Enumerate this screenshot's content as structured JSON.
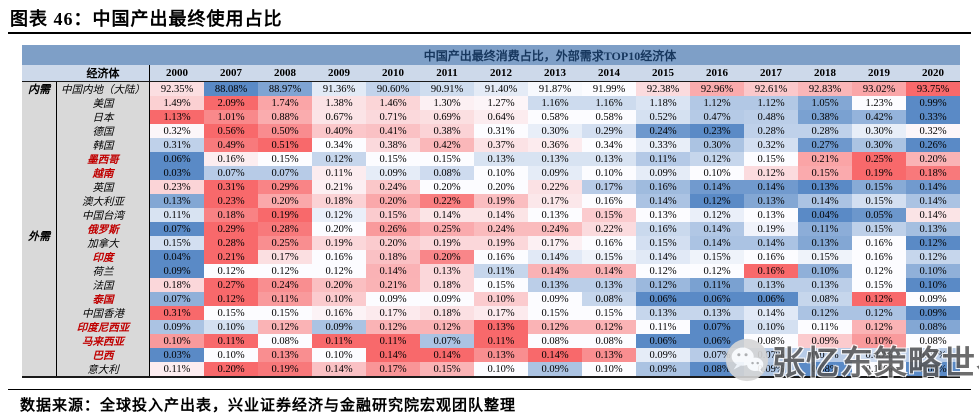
{
  "page": {
    "title": "图表 46：中国产出最终使用占比",
    "source": "数据来源：全球投入产出表，兴业证券经济与金融研究院宏观团队整理",
    "watermark_text": "张忆东策略世界",
    "watermark_icon": "wechat-icon"
  },
  "chart_data": {
    "type": "heatmap",
    "title": "中国产出最终消费占比，外部需求TOP10经济体",
    "economy_header": "经济体",
    "columns": [
      "2000",
      "2007",
      "2008",
      "2009",
      "2010",
      "2011",
      "2012",
      "2013",
      "2014",
      "2015",
      "2016",
      "2017",
      "2018",
      "2019",
      "2020"
    ],
    "groups": [
      {
        "label": "内需",
        "row_span": 1
      },
      {
        "label": "外需",
        "row_span": 20
      }
    ],
    "value_unit": "percent",
    "colorscale": {
      "low": "#5A8AC6",
      "mid": "#FCFCFF",
      "high": "#F8696B",
      "normalization": "per-row min/median/max"
    },
    "highlight_color": "#C00000",
    "rows": [
      {
        "name": "中国内地（大陆）",
        "highlight": false,
        "values": [
          92.35,
          88.08,
          88.97,
          91.36,
          90.6,
          90.91,
          91.4,
          91.87,
          91.99,
          92.38,
          92.96,
          92.61,
          92.83,
          93.02,
          93.75
        ]
      },
      {
        "name": "美国",
        "highlight": false,
        "values": [
          1.49,
          2.09,
          1.74,
          1.38,
          1.46,
          1.3,
          1.27,
          1.16,
          1.16,
          1.18,
          1.12,
          1.12,
          1.05,
          1.23,
          0.99
        ]
      },
      {
        "name": "日本",
        "highlight": false,
        "values": [
          1.13,
          1.01,
          0.88,
          0.67,
          0.71,
          0.69,
          0.64,
          0.58,
          0.58,
          0.52,
          0.47,
          0.48,
          0.38,
          0.42,
          0.33
        ]
      },
      {
        "name": "德国",
        "highlight": false,
        "values": [
          0.32,
          0.56,
          0.5,
          0.4,
          0.41,
          0.38,
          0.31,
          0.3,
          0.29,
          0.24,
          0.23,
          0.28,
          0.28,
          0.3,
          0.32
        ]
      },
      {
        "name": "韩国",
        "highlight": false,
        "values": [
          0.31,
          0.49,
          0.51,
          0.34,
          0.38,
          0.42,
          0.37,
          0.36,
          0.34,
          0.33,
          0.3,
          0.32,
          0.27,
          0.3,
          0.26
        ]
      },
      {
        "name": "墨西哥",
        "highlight": true,
        "values": [
          0.06,
          0.16,
          0.15,
          0.12,
          0.15,
          0.15,
          0.13,
          0.13,
          0.13,
          0.11,
          0.12,
          0.15,
          0.21,
          0.25,
          0.2
        ]
      },
      {
        "name": "越南",
        "highlight": true,
        "values": [
          0.03,
          0.07,
          0.07,
          0.11,
          0.09,
          0.08,
          0.1,
          0.09,
          0.1,
          0.09,
          0.1,
          0.12,
          0.15,
          0.19,
          0.18
        ]
      },
      {
        "name": "英国",
        "highlight": false,
        "values": [
          0.23,
          0.31,
          0.29,
          0.21,
          0.24,
          0.2,
          0.2,
          0.22,
          0.17,
          0.16,
          0.14,
          0.14,
          0.13,
          0.15,
          0.14
        ]
      },
      {
        "name": "澳大利亚",
        "highlight": false,
        "values": [
          0.13,
          0.23,
          0.2,
          0.18,
          0.2,
          0.22,
          0.19,
          0.17,
          0.16,
          0.14,
          0.12,
          0.13,
          0.14,
          0.15,
          0.14
        ]
      },
      {
        "name": "中国台湾",
        "highlight": false,
        "values": [
          0.11,
          0.18,
          0.19,
          0.12,
          0.15,
          0.14,
          0.14,
          0.13,
          0.15,
          0.13,
          0.12,
          0.13,
          0.04,
          0.05,
          0.14
        ]
      },
      {
        "name": "俄罗斯",
        "highlight": true,
        "values": [
          0.07,
          0.29,
          0.28,
          0.2,
          0.26,
          0.25,
          0.24,
          0.24,
          0.22,
          0.16,
          0.14,
          0.19,
          0.11,
          0.15,
          0.13
        ]
      },
      {
        "name": "加拿大",
        "highlight": false,
        "values": [
          0.15,
          0.28,
          0.25,
          0.19,
          0.2,
          0.19,
          0.19,
          0.17,
          0.16,
          0.15,
          0.14,
          0.14,
          0.13,
          0.16,
          0.12
        ]
      },
      {
        "name": "印度",
        "highlight": true,
        "values": [
          0.04,
          0.21,
          0.17,
          0.16,
          0.18,
          0.2,
          0.16,
          0.14,
          0.15,
          0.14,
          0.15,
          0.16,
          0.15,
          0.16,
          0.12
        ]
      },
      {
        "name": "荷兰",
        "highlight": false,
        "values": [
          0.09,
          0.12,
          0.12,
          0.12,
          0.14,
          0.13,
          0.11,
          0.14,
          0.14,
          0.12,
          0.12,
          0.16,
          0.1,
          0.12,
          0.1
        ]
      },
      {
        "name": "法国",
        "highlight": false,
        "values": [
          0.18,
          0.27,
          0.24,
          0.2,
          0.21,
          0.18,
          0.15,
          0.13,
          0.13,
          0.12,
          0.11,
          0.13,
          0.13,
          0.15,
          0.1
        ]
      },
      {
        "name": "泰国",
        "highlight": true,
        "values": [
          0.07,
          0.12,
          0.11,
          0.1,
          0.09,
          0.09,
          0.1,
          0.09,
          0.08,
          0.06,
          0.06,
          0.06,
          0.08,
          0.12,
          0.09
        ]
      },
      {
        "name": "中国香港",
        "highlight": false,
        "values": [
          0.31,
          0.15,
          0.15,
          0.16,
          0.17,
          0.18,
          0.17,
          0.15,
          0.15,
          0.13,
          0.13,
          0.14,
          0.12,
          0.12,
          0.09
        ]
      },
      {
        "name": "印度尼西亚",
        "highlight": true,
        "values": [
          0.09,
          0.1,
          0.12,
          0.09,
          0.12,
          0.12,
          0.13,
          0.12,
          0.12,
          0.11,
          0.07,
          0.1,
          0.11,
          0.12,
          0.08
        ]
      },
      {
        "name": "马来西亚",
        "highlight": true,
        "values": [
          0.1,
          0.11,
          0.08,
          0.11,
          0.11,
          0.07,
          0.11,
          0.08,
          0.08,
          0.06,
          0.06,
          0.08,
          0.09,
          0.1,
          0.08
        ]
      },
      {
        "name": "巴西",
        "highlight": true,
        "values": [
          0.03,
          0.1,
          0.13,
          0.1,
          0.14,
          0.14,
          0.13,
          0.14,
          0.13,
          0.09,
          0.07,
          0.07,
          0.07,
          0.08,
          0.07
        ]
      },
      {
        "name": "意大利",
        "highlight": false,
        "values": [
          0.11,
          0.2,
          0.19,
          0.14,
          0.17,
          0.15,
          0.1,
          0.09,
          0.1,
          0.09,
          0.08,
          0.09,
          0.08,
          0.1,
          0.08
        ]
      }
    ]
  }
}
